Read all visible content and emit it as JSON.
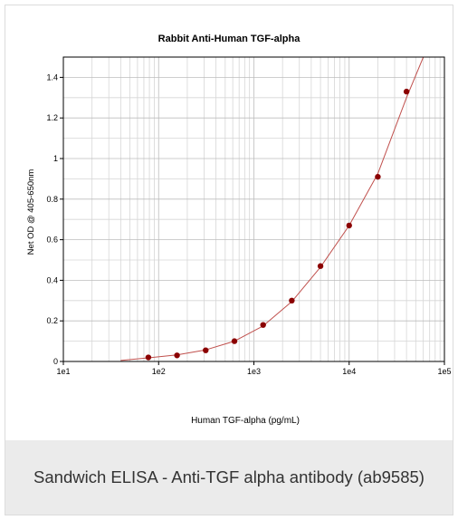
{
  "caption": "Sandwich ELISA - Anti-TGF alpha antibody (ab9585)",
  "chart_data": {
    "type": "scatter",
    "title": "Rabbit Anti-Human TGF-alpha",
    "xlabel": "Human TGF-alpha (pg/mL)",
    "ylabel": "Net OD @ 405-650nm",
    "x_scale": "log",
    "xlim": [
      10,
      100000
    ],
    "ylim": [
      0,
      1.5
    ],
    "x_ticks": [
      {
        "value": 10,
        "label": "1e1"
      },
      {
        "value": 100,
        "label": "1e2"
      },
      {
        "value": 1000,
        "label": "1e3"
      },
      {
        "value": 10000,
        "label": "1e4"
      },
      {
        "value": 100000,
        "label": "1e5"
      }
    ],
    "y_ticks": [
      {
        "value": 0,
        "label": "0"
      },
      {
        "value": 0.2,
        "label": "0.2"
      },
      {
        "value": 0.4,
        "label": "0.4"
      },
      {
        "value": 0.6,
        "label": "0.6"
      },
      {
        "value": 0.8,
        "label": "0.8"
      },
      {
        "value": 1,
        "label": "1"
      },
      {
        "value": 1.2,
        "label": "1.2"
      },
      {
        "value": 1.4,
        "label": "1.4"
      }
    ],
    "grid": true,
    "points": [
      {
        "x": 78,
        "y": 0.02
      },
      {
        "x": 156,
        "y": 0.03
      },
      {
        "x": 312,
        "y": 0.055
      },
      {
        "x": 625,
        "y": 0.1
      },
      {
        "x": 1250,
        "y": 0.18
      },
      {
        "x": 2500,
        "y": 0.3
      },
      {
        "x": 5000,
        "y": 0.47
      },
      {
        "x": 10000,
        "y": 0.67
      },
      {
        "x": 20000,
        "y": 0.91
      },
      {
        "x": 40000,
        "y": 1.33
      }
    ],
    "fit_curve": {
      "x": [
        40,
        78,
        156,
        312,
        625,
        1250,
        2500,
        5000,
        10000,
        20000,
        40000,
        60000
      ],
      "y": [
        0.005,
        0.018,
        0.032,
        0.057,
        0.1,
        0.175,
        0.295,
        0.465,
        0.67,
        0.925,
        1.3,
        1.5
      ]
    },
    "colors": {
      "points": "#8b0000",
      "curve": "#c0504d",
      "grid": "#d6d6d6",
      "axis": "#000000"
    }
  }
}
